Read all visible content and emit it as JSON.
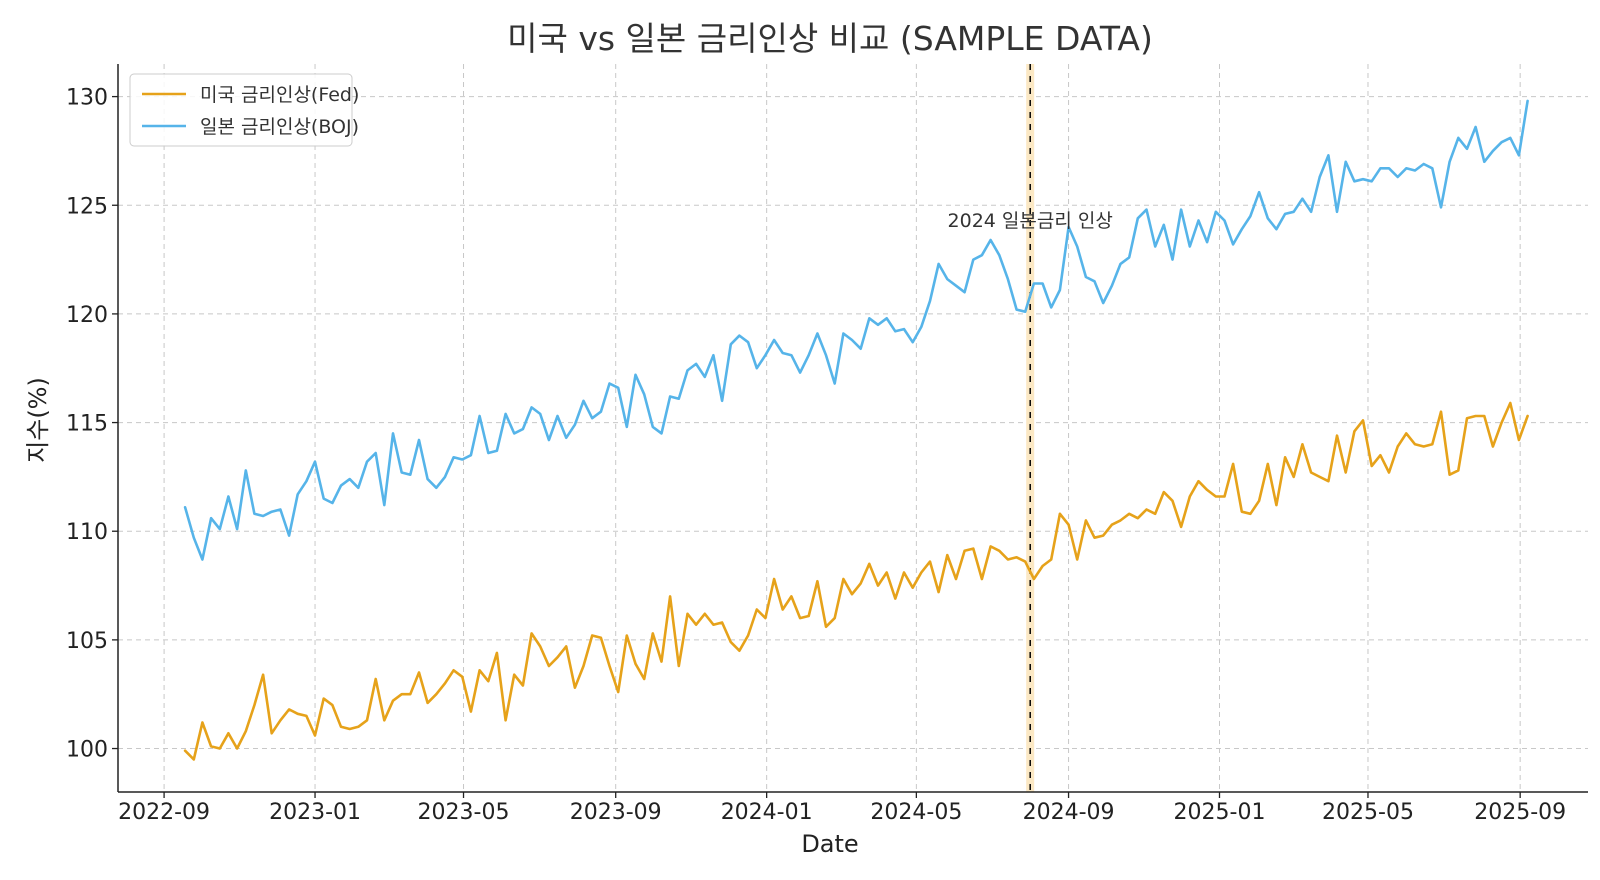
{
  "chart_data": {
    "type": "line",
    "title": "미국 vs 일본 금리인상 비교 (SAMPLE DATA)",
    "xlabel": "Date",
    "ylabel": "지수(%)",
    "ylim": [
      98,
      131.5
    ],
    "yticks": [
      100,
      105,
      110,
      115,
      120,
      125,
      130
    ],
    "xticks": [
      "2022-09",
      "2023-01",
      "2023-05",
      "2023-09",
      "2024-01",
      "2024-05",
      "2024-09",
      "2025-01",
      "2025-05",
      "2025-09"
    ],
    "grid": true,
    "legend_position": "top-left",
    "annotation": {
      "date": "2024-08",
      "label": "2024 일본금리 인상",
      "y_value": 124,
      "highlight_color": "#fbe8c4"
    },
    "x_start": "2022-09-18",
    "x_step_days": 7,
    "series": [
      {
        "name": "미국 금리인상(Fed)",
        "color": "#e6a21a",
        "values": [
          99.9,
          99.5,
          101.2,
          100.1,
          100.0,
          100.7,
          100.0,
          100.8,
          102.0,
          103.4,
          100.7,
          101.3,
          101.8,
          101.6,
          101.5,
          100.6,
          102.3,
          102.0,
          101.0,
          100.9,
          101.0,
          101.3,
          103.2,
          101.3,
          102.2,
          102.5,
          102.5,
          103.5,
          102.1,
          102.5,
          103.0,
          103.6,
          103.3,
          101.7,
          103.6,
          103.1,
          104.4,
          101.3,
          103.4,
          102.9,
          105.3,
          104.7,
          103.8,
          104.2,
          104.7,
          102.8,
          103.8,
          105.2,
          105.1,
          103.8,
          102.6,
          105.2,
          103.9,
          103.2,
          105.3,
          104.0,
          107.0,
          103.8,
          106.2,
          105.7,
          106.2,
          105.7,
          105.8,
          104.9,
          104.5,
          105.2,
          106.4,
          106.0,
          107.8,
          106.4,
          107.0,
          106.0,
          106.1,
          107.7,
          105.6,
          106.0,
          107.8,
          107.1,
          107.6,
          108.5,
          107.5,
          108.1,
          106.9,
          108.1,
          107.4,
          108.1,
          108.6,
          107.2,
          108.9,
          107.8,
          109.1,
          109.2,
          107.8,
          109.3,
          109.1,
          108.7,
          108.8,
          108.6,
          107.8,
          108.4,
          108.7,
          110.8,
          110.3,
          108.7,
          110.5,
          109.7,
          109.8,
          110.3,
          110.5,
          110.8,
          110.6,
          111.0,
          110.8,
          111.8,
          111.4,
          110.2,
          111.6,
          112.3,
          111.9,
          111.6,
          111.6,
          113.1,
          110.9,
          110.8,
          111.4,
          113.1,
          111.2,
          113.4,
          112.5,
          114.0,
          112.7,
          112.5,
          112.3,
          114.4,
          112.7,
          114.6,
          115.1,
          113.0,
          113.5,
          112.7,
          113.9,
          114.5,
          114.0,
          113.9,
          114.0,
          115.5,
          112.6,
          112.8,
          115.2,
          115.3,
          115.3,
          113.9,
          115.0,
          115.9,
          114.2,
          115.3
        ]
      },
      {
        "name": "일본 금리인상(BOJ)",
        "color": "#56b4e9",
        "values": [
          111.1,
          109.7,
          108.7,
          110.6,
          110.1,
          111.6,
          110.1,
          112.8,
          110.8,
          110.7,
          110.9,
          111.0,
          109.8,
          111.7,
          112.3,
          113.2,
          111.5,
          111.3,
          112.1,
          112.4,
          112.0,
          113.2,
          113.6,
          111.2,
          114.5,
          112.7,
          112.6,
          114.2,
          112.4,
          112.0,
          112.5,
          113.4,
          113.3,
          113.5,
          115.3,
          113.6,
          113.7,
          115.4,
          114.5,
          114.7,
          115.7,
          115.4,
          114.2,
          115.3,
          114.3,
          114.9,
          116.0,
          115.2,
          115.5,
          116.8,
          116.6,
          114.8,
          117.2,
          116.3,
          114.8,
          114.5,
          116.2,
          116.1,
          117.4,
          117.7,
          117.1,
          118.1,
          116.0,
          118.6,
          119.0,
          118.7,
          117.5,
          118.1,
          118.8,
          118.2,
          118.1,
          117.3,
          118.1,
          119.1,
          118.1,
          116.8,
          119.1,
          118.8,
          118.4,
          119.8,
          119.5,
          119.8,
          119.2,
          119.3,
          118.7,
          119.4,
          120.6,
          122.3,
          121.6,
          121.3,
          121.0,
          122.5,
          122.7,
          123.4,
          122.7,
          121.6,
          120.2,
          120.1,
          121.4,
          121.4,
          120.3,
          121.1,
          124.0,
          123.1,
          121.7,
          121.5,
          120.5,
          121.3,
          122.3,
          122.6,
          124.4,
          124.8,
          123.1,
          124.1,
          122.5,
          124.8,
          123.1,
          124.3,
          123.3,
          124.7,
          124.3,
          123.2,
          123.9,
          124.5,
          125.6,
          124.4,
          123.9,
          124.6,
          124.7,
          125.3,
          124.7,
          126.3,
          127.3,
          124.7,
          127.0,
          126.1,
          126.2,
          126.1,
          126.7,
          126.7,
          126.3,
          126.7,
          126.6,
          126.9,
          126.7,
          124.9,
          127.0,
          128.1,
          127.6,
          128.6,
          127.0,
          127.5,
          127.9,
          128.1,
          127.3,
          129.8
        ]
      }
    ]
  }
}
